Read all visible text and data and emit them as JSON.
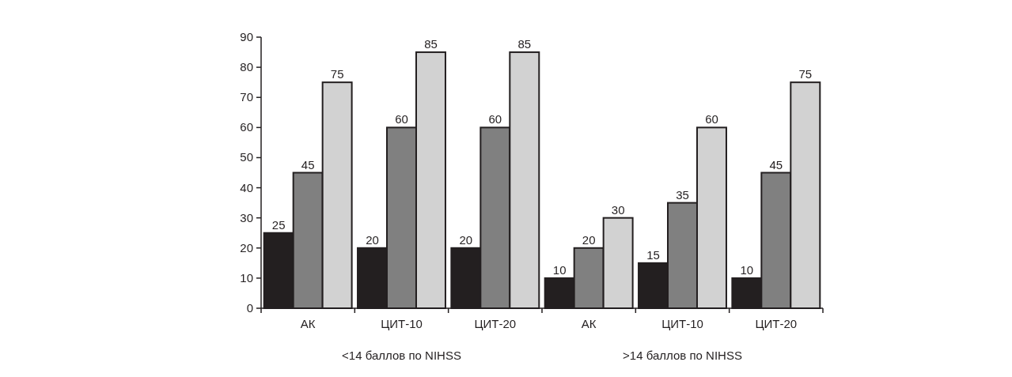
{
  "chart_data": {
    "type": "bar",
    "categories": [
      "АК",
      "ЦИТ-10",
      "ЦИТ-20",
      "АК",
      "ЦИТ-10",
      "ЦИТ-20"
    ],
    "series": [
      {
        "color": "#231f20",
        "values": [
          25,
          20,
          20,
          10,
          15,
          10
        ]
      },
      {
        "color": "#808080",
        "values": [
          45,
          60,
          60,
          20,
          35,
          45
        ]
      },
      {
        "color": "#d2d2d2",
        "values": [
          75,
          85,
          85,
          30,
          60,
          75
        ]
      }
    ],
    "ylim": [
      0,
      90
    ],
    "yticks": [
      0,
      10,
      20,
      30,
      40,
      50,
      60,
      70,
      80,
      90
    ],
    "grid": false,
    "data_labels": true,
    "annotations": [
      "<14 баллов по NIHSS",
      ">14 баллов по NIHSS"
    ]
  }
}
